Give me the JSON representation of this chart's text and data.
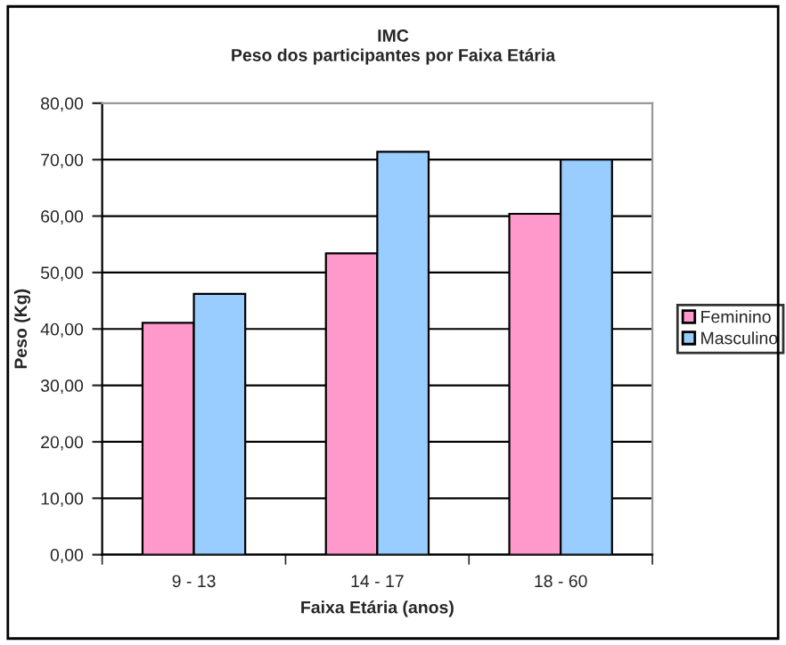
{
  "chart_data": {
    "type": "bar",
    "title": "IMC",
    "subtitle": "Peso dos participantes por Faixa Etária",
    "xlabel": "Faixa Etária (anos)",
    "ylabel": "Peso (Kg)",
    "categories": [
      "9 - 13",
      "14 - 17",
      "18 - 60"
    ],
    "series": [
      {
        "name": "Feminino",
        "color": "#ff99cc",
        "values": [
          41.1,
          53.4,
          60.4
        ]
      },
      {
        "name": "Masculino",
        "color": "#99ccff",
        "values": [
          46.2,
          71.4,
          70.0
        ]
      }
    ],
    "ylim": [
      0,
      80
    ],
    "yticks": [
      {
        "value": 0,
        "label": "0,00"
      },
      {
        "value": 10,
        "label": "10,00"
      },
      {
        "value": 20,
        "label": "20,00"
      },
      {
        "value": 30,
        "label": "30,00"
      },
      {
        "value": 40,
        "label": "40,00"
      },
      {
        "value": 50,
        "label": "50,00"
      },
      {
        "value": 60,
        "label": "60,00"
      },
      {
        "value": 70,
        "label": "70,00"
      },
      {
        "value": 80,
        "label": "80,00"
      }
    ],
    "grid": "y",
    "legend": "right"
  }
}
